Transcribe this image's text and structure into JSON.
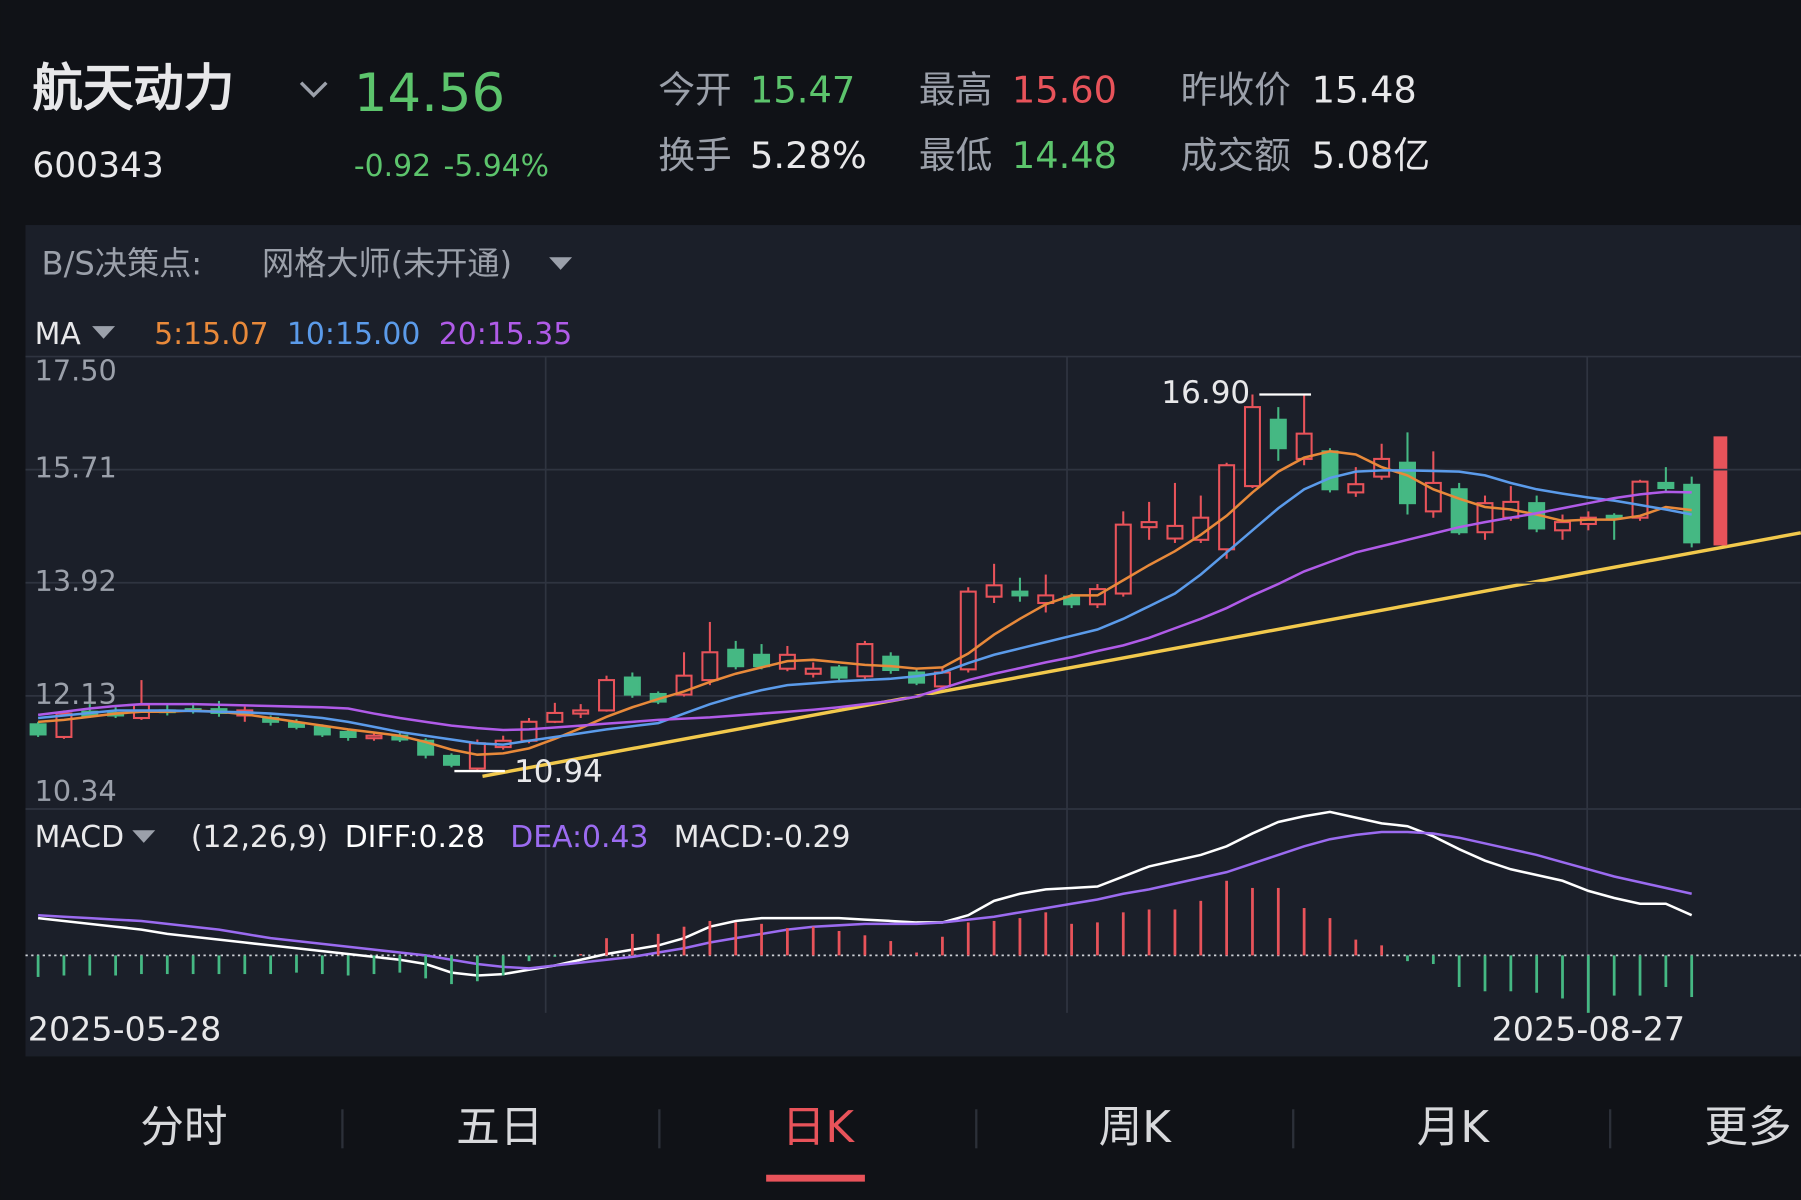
{
  "header": {
    "name": "航天动力",
    "code": "600343",
    "price": "14.56",
    "change": "-0.92",
    "change_pct": "-5.94%",
    "stats": [
      {
        "label": "今开",
        "value": "15.47",
        "color": "#5cc46c"
      },
      {
        "label": "最高",
        "value": "15.60",
        "color": "#e8535a"
      },
      {
        "label": "昨收价",
        "value": "15.48",
        "color": "#e8e8ea"
      },
      {
        "label": "换手",
        "value": "5.28%",
        "color": "#e8e8ea"
      },
      {
        "label": "最低",
        "value": "14.48",
        "color": "#5cc46c"
      },
      {
        "label": "成交额",
        "value": "5.08亿",
        "color": "#e8e8ea"
      }
    ]
  },
  "toolbar": {
    "label": "B/S决策点:",
    "strategy": "网格大师(未开通)"
  },
  "chart_data": [
    {
      "type": "candlestick",
      "legend_title": "MA",
      "categories": [
        "2025-05-28",
        null,
        null,
        null,
        null,
        null,
        null,
        null,
        null,
        null,
        null,
        null,
        null,
        null,
        null,
        null,
        null,
        null,
        null,
        null,
        null,
        null,
        null,
        null,
        null,
        null,
        null,
        null,
        null,
        null,
        null,
        null,
        null,
        null,
        null,
        null,
        null,
        null,
        null,
        null,
        null,
        null,
        null,
        null,
        null,
        null,
        null,
        null,
        null,
        null,
        null,
        null,
        null,
        null,
        null,
        null,
        null,
        null,
        null,
        null,
        "2025-08-27",
        null,
        null,
        null,
        null
      ],
      "open": [
        11.68,
        11.48,
        11.88,
        11.86,
        11.78,
        11.9,
        11.92,
        11.92,
        11.82,
        11.78,
        11.7,
        11.64,
        11.56,
        11.46,
        11.5,
        11.42,
        11.18,
        10.98,
        11.32,
        11.42,
        11.72,
        11.85,
        11.9,
        12.42,
        12.16,
        12.15,
        12.38,
        12.86,
        12.78,
        12.56,
        12.48,
        12.58,
        12.44,
        12.75,
        12.5,
        12.28,
        12.55,
        13.7,
        13.78,
        13.6,
        13.7,
        13.58,
        13.75,
        14.8,
        14.62,
        14.6,
        14.45,
        15.45,
        16.5,
        15.88,
        16.0,
        15.35,
        15.6,
        15.82,
        15.05,
        15.4,
        14.72,
        14.95,
        15.18,
        14.75,
        14.85,
        14.98,
        14.95,
        15.5,
        15.47
      ],
      "high": [
        11.72,
        11.9,
        12.0,
        11.95,
        12.38,
        12.0,
        12.02,
        12.05,
        11.96,
        11.82,
        11.76,
        11.68,
        11.6,
        11.56,
        11.56,
        11.46,
        11.22,
        11.44,
        11.5,
        11.78,
        12.02,
        12.0,
        12.45,
        12.5,
        12.2,
        12.82,
        13.3,
        13.0,
        12.95,
        12.92,
        12.66,
        12.62,
        13.0,
        12.82,
        12.55,
        12.6,
        13.85,
        14.22,
        14.0,
        14.05,
        13.75,
        13.9,
        15.05,
        15.2,
        15.5,
        15.3,
        15.82,
        16.9,
        16.7,
        16.9,
        16.05,
        15.75,
        16.12,
        16.3,
        16.0,
        15.5,
        15.3,
        15.45,
        15.3,
        15.0,
        15.05,
        15.02,
        15.55,
        15.75,
        15.6
      ],
      "low": [
        11.48,
        11.45,
        11.78,
        11.78,
        11.75,
        11.82,
        11.85,
        11.8,
        11.72,
        11.66,
        11.6,
        11.48,
        11.42,
        11.42,
        11.4,
        11.14,
        11.0,
        10.94,
        11.28,
        11.38,
        11.7,
        11.78,
        11.88,
        12.1,
        12.0,
        12.12,
        12.3,
        12.55,
        12.55,
        12.52,
        12.42,
        12.38,
        12.4,
        12.48,
        12.3,
        12.25,
        12.5,
        13.6,
        13.62,
        13.45,
        13.52,
        13.52,
        13.7,
        14.6,
        14.55,
        14.55,
        14.3,
        15.42,
        15.85,
        15.78,
        15.35,
        15.28,
        15.55,
        15.0,
        14.95,
        14.68,
        14.6,
        14.9,
        14.72,
        14.6,
        14.75,
        14.6,
        14.9,
        15.35,
        14.48
      ],
      "close": [
        11.52,
        11.85,
        11.82,
        11.82,
        11.99,
        11.88,
        11.9,
        11.86,
        11.9,
        11.72,
        11.64,
        11.52,
        11.48,
        11.5,
        11.44,
        11.2,
        11.04,
        11.38,
        11.42,
        11.72,
        11.86,
        11.9,
        12.38,
        12.15,
        12.04,
        12.45,
        12.82,
        12.6,
        12.6,
        12.78,
        12.56,
        12.42,
        12.95,
        12.54,
        12.34,
        12.5,
        13.78,
        13.88,
        13.72,
        13.72,
        13.58,
        13.82,
        14.84,
        14.88,
        14.82,
        14.95,
        15.78,
        16.7,
        16.05,
        16.28,
        15.4,
        15.48,
        15.88,
        15.18,
        15.5,
        14.72,
        15.18,
        15.2,
        14.78,
        14.88,
        14.95,
        14.94,
        15.52,
        15.42,
        14.56
      ],
      "up_color": "#e8535a",
      "down_color": "#45b883",
      "ylim": [
        10.34,
        17.5
      ],
      "yticks": [
        {
          "value": 17.5,
          "label": "17.50"
        },
        15.71,
        13.92,
        12.13,
        10.34
      ],
      "high_label": {
        "value": 16.9,
        "label": "16.90"
      },
      "low_label": {
        "value": 10.94,
        "label": "10.94"
      },
      "ma": [
        {
          "name": "5:15.07",
          "color": "#e8893a",
          "values": [
            11.72,
            11.75,
            11.8,
            11.85,
            11.88,
            11.88,
            11.9,
            11.88,
            11.84,
            11.78,
            11.72,
            11.66,
            11.6,
            11.55,
            11.5,
            11.4,
            11.28,
            11.2,
            11.22,
            11.3,
            11.45,
            11.62,
            11.8,
            11.95,
            12.08,
            12.2,
            12.35,
            12.48,
            12.58,
            12.68,
            12.7,
            12.66,
            12.62,
            12.6,
            12.56,
            12.58,
            12.8,
            13.1,
            13.35,
            13.58,
            13.72,
            13.72,
            13.96,
            14.2,
            14.42,
            14.68,
            14.98,
            15.35,
            15.68,
            15.9,
            16.0,
            15.95,
            15.75,
            15.62,
            15.4,
            15.25,
            15.12,
            15.08,
            15.0,
            14.9,
            14.92,
            14.92,
            14.98,
            15.12,
            15.07
          ]
        },
        {
          "name": "10:15.00",
          "color": "#5b9bea",
          "values": [
            11.78,
            11.82,
            11.86,
            11.9,
            11.9,
            11.9,
            11.89,
            11.88,
            11.87,
            11.85,
            11.82,
            11.78,
            11.72,
            11.64,
            11.56,
            11.5,
            11.44,
            11.38,
            11.36,
            11.42,
            11.48,
            11.54,
            11.6,
            11.65,
            11.7,
            11.85,
            12.0,
            12.12,
            12.22,
            12.3,
            12.33,
            12.36,
            12.38,
            12.4,
            12.44,
            12.5,
            12.65,
            12.78,
            12.88,
            12.98,
            13.08,
            13.18,
            13.35,
            13.55,
            13.75,
            14.05,
            14.4,
            14.75,
            15.1,
            15.4,
            15.58,
            15.68,
            15.7,
            15.7,
            15.69,
            15.68,
            15.62,
            15.5,
            15.4,
            15.33,
            15.27,
            15.22,
            15.15,
            15.08,
            15.0
          ]
        },
        {
          "name": "20:15.35",
          "color": "#b05be8",
          "values": [
            11.83,
            11.88,
            11.93,
            11.97,
            12.0,
            12.0,
            12.0,
            11.99,
            11.98,
            11.97,
            11.96,
            11.95,
            11.93,
            11.85,
            11.78,
            11.72,
            11.66,
            11.62,
            11.59,
            11.6,
            11.63,
            11.66,
            11.69,
            11.72,
            11.75,
            11.77,
            11.79,
            11.82,
            11.85,
            11.88,
            11.91,
            11.95,
            12.0,
            12.05,
            12.12,
            12.25,
            12.38,
            12.48,
            12.57,
            12.66,
            12.74,
            12.84,
            12.93,
            13.05,
            13.2,
            13.35,
            13.52,
            13.72,
            13.9,
            14.1,
            14.25,
            14.4,
            14.5,
            14.6,
            14.7,
            14.8,
            14.88,
            14.95,
            15.02,
            15.1,
            15.18,
            15.26,
            15.32,
            15.36,
            15.35
          ]
        }
      ]
    },
    {
      "type": "macd",
      "title": "MACD",
      "params": "(12,26,9)",
      "ylim": [
        -0.384,
        1.056
      ],
      "series": [
        {
          "name": "DIFF:0.28",
          "color": "#ffffff",
          "kind": "line",
          "values": [
            0.26,
            0.24,
            0.22,
            0.2,
            0.18,
            0.15,
            0.13,
            0.11,
            0.09,
            0.07,
            0.05,
            0.03,
            0.01,
            -0.01,
            -0.03,
            -0.06,
            -0.12,
            -0.14,
            -0.13,
            -0.1,
            -0.07,
            -0.03,
            0.01,
            0.04,
            0.07,
            0.12,
            0.2,
            0.24,
            0.26,
            0.26,
            0.26,
            0.26,
            0.25,
            0.24,
            0.23,
            0.23,
            0.28,
            0.38,
            0.43,
            0.46,
            0.47,
            0.48,
            0.55,
            0.62,
            0.66,
            0.7,
            0.76,
            0.85,
            0.93,
            0.97,
            1.0,
            0.96,
            0.92,
            0.9,
            0.83,
            0.74,
            0.66,
            0.6,
            0.56,
            0.52,
            0.45,
            0.4,
            0.36,
            0.36,
            0.28
          ]
        },
        {
          "name": "DEA:0.43",
          "color": "#9b6bf0",
          "kind": "line",
          "values": [
            0.28,
            0.27,
            0.26,
            0.25,
            0.24,
            0.22,
            0.2,
            0.18,
            0.15,
            0.12,
            0.1,
            0.08,
            0.06,
            0.04,
            0.02,
            0,
            -0.03,
            -0.06,
            -0.08,
            -0.09,
            -0.07,
            -0.05,
            -0.03,
            -0.01,
            0.02,
            0.05,
            0.09,
            0.12,
            0.15,
            0.18,
            0.2,
            0.21,
            0.22,
            0.22,
            0.22,
            0.23,
            0.25,
            0.27,
            0.3,
            0.33,
            0.36,
            0.39,
            0.43,
            0.46,
            0.5,
            0.54,
            0.58,
            0.64,
            0.7,
            0.76,
            0.81,
            0.84,
            0.86,
            0.86,
            0.85,
            0.82,
            0.78,
            0.74,
            0.7,
            0.65,
            0.6,
            0.55,
            0.51,
            0.47,
            0.43
          ]
        },
        {
          "name": "MACD:-0.29",
          "color": "#e8e8ea",
          "kind": "bar",
          "values": [
            -0.15,
            -0.14,
            -0.14,
            -0.14,
            -0.13,
            -0.13,
            -0.13,
            -0.13,
            -0.13,
            -0.13,
            -0.12,
            -0.13,
            -0.14,
            -0.13,
            -0.12,
            -0.16,
            -0.2,
            -0.18,
            -0.14,
            -0.04,
            -0.01,
            0.01,
            0.12,
            0.15,
            0.15,
            0.2,
            0.24,
            0.23,
            0.22,
            0.19,
            0.2,
            0.17,
            0.14,
            0.1,
            0.02,
            0.13,
            0.23,
            0.24,
            0.26,
            0.3,
            0.22,
            0.23,
            0.3,
            0.32,
            0.32,
            0.38,
            0.52,
            0.47,
            0.47,
            0.33,
            0.26,
            0.11,
            0.07,
            -0.04,
            -0.06,
            -0.22,
            -0.25,
            -0.25,
            -0.26,
            -0.3,
            -0.4,
            -0.28,
            -0.28,
            -0.22,
            -0.29
          ]
        }
      ]
    }
  ],
  "tabs": [
    "分时",
    "五日",
    "日K",
    "周K",
    "月K",
    "更多"
  ],
  "active_tab": 2
}
